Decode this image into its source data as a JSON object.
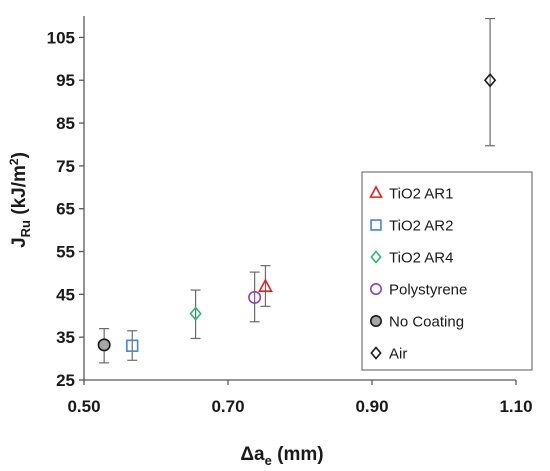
{
  "chart_data": {
    "type": "scatter",
    "xlabel": {
      "main": "Δa",
      "sub": "e",
      "unit": " (mm)"
    },
    "ylabel": {
      "main": "J",
      "sub": "Ru",
      "unit": " (kJ/m",
      "sup": "2",
      "close": ")"
    },
    "xlim": [
      0.5,
      1.1
    ],
    "ylim": [
      25,
      110
    ],
    "x_ticks": [
      "0.50",
      "0.70",
      "0.90",
      "1.10"
    ],
    "x_tick_values": [
      0.5,
      0.7,
      0.9,
      1.1
    ],
    "y_ticks": [
      "25",
      "35",
      "45",
      "55",
      "65",
      "75",
      "85",
      "95",
      "105"
    ],
    "y_tick_values": [
      25,
      35,
      45,
      55,
      65,
      75,
      85,
      95,
      105
    ],
    "grid": false,
    "legend_position": "right",
    "series": [
      {
        "name": "TiO2  AR1",
        "marker": "triangle",
        "stroke": "#e3201b",
        "fill": "none",
        "x": 0.752,
        "y": 46.8,
        "err_low": 42.2,
        "err_high": 51.7
      },
      {
        "name": "TiO2  AR2",
        "marker": "square",
        "stroke": "#4a86c8",
        "fill": "none",
        "x": 0.567,
        "y": 33.0,
        "err_low": 29.6,
        "err_high": 36.5
      },
      {
        "name": "TiO2  AR4",
        "marker": "diamond",
        "stroke": "#2eb872",
        "fill": "none",
        "x": 0.655,
        "y": 40.5,
        "err_low": 34.7,
        "err_high": 46.0
      },
      {
        "name": "Polystyrene",
        "marker": "circle",
        "stroke": "#8f3fb8",
        "fill": "none",
        "x": 0.737,
        "y": 44.3,
        "err_low": 38.6,
        "err_high": 50.2
      },
      {
        "name": "No Coating",
        "marker": "circle",
        "stroke": "#1a1a1a",
        "fill": "#a6a6a6",
        "x": 0.528,
        "y": 33.2,
        "err_low": 29.0,
        "err_high": 37.0
      },
      {
        "name": "Air",
        "marker": "diamond",
        "stroke": "#1a1a1a",
        "fill": "none",
        "x": 1.064,
        "y": 95.0,
        "err_low": 79.7,
        "err_high": 109.4
      }
    ]
  }
}
